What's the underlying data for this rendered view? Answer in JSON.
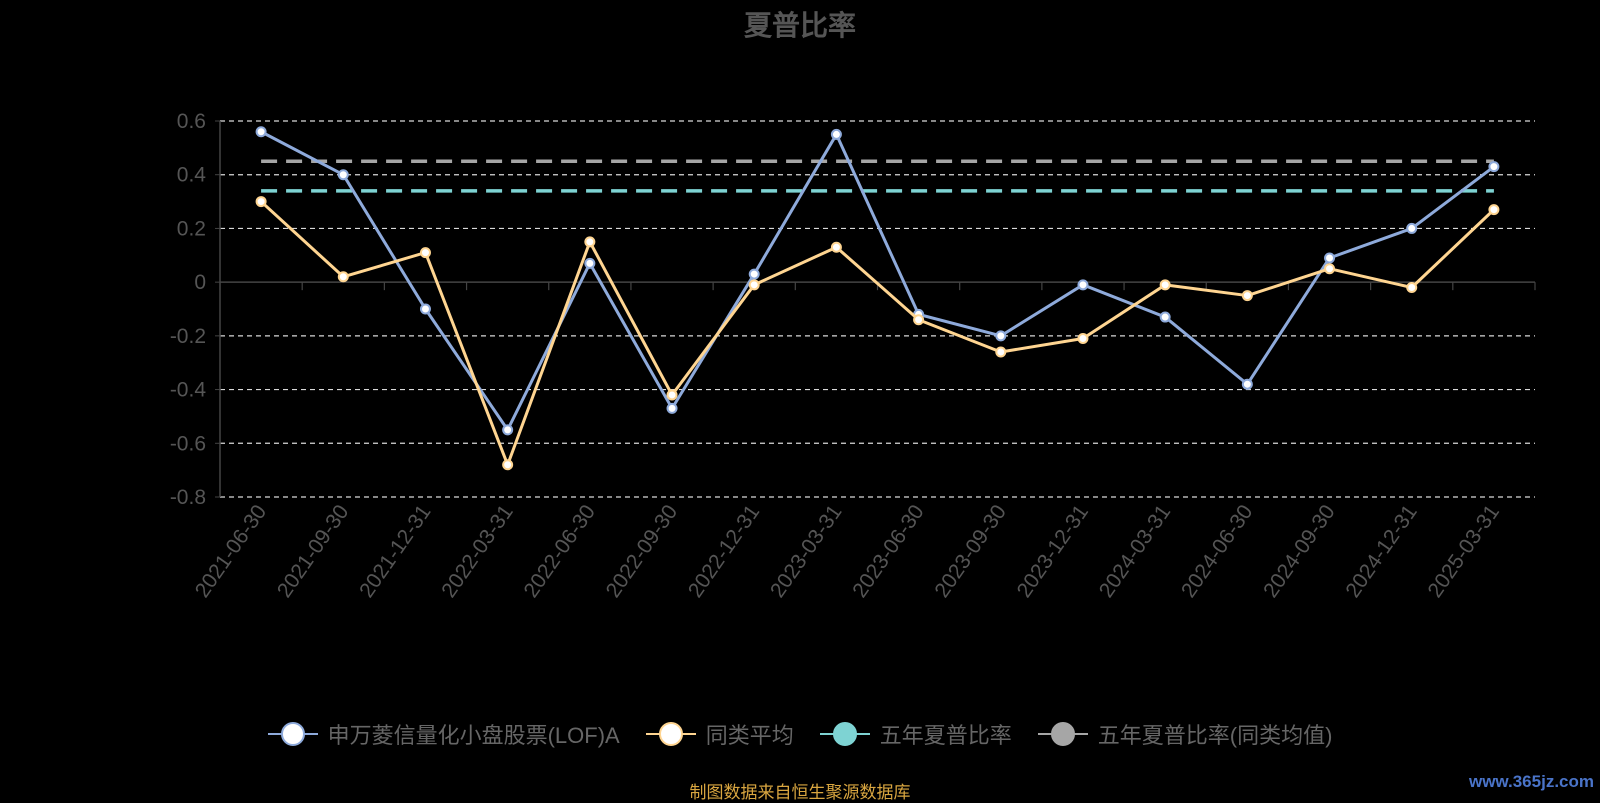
{
  "title": "夏普比率",
  "source_note": "制图数据来自恒生聚源数据库",
  "watermark": "www.365jz.com",
  "colors": {
    "background": "#000000",
    "fund": "#8eaadb",
    "category_avg": "#ffd591",
    "five_year": "#7ed3d3",
    "five_year_category": "#a6a6a6",
    "grid": "#ffffff",
    "axis_text": "#555555"
  },
  "legend": [
    {
      "label": "申万菱信量化小盘股票(LOF)A",
      "color": "#8eaadb",
      "dot_fill": "#ffffff"
    },
    {
      "label": "同类平均",
      "color": "#ffd591",
      "dot_fill": "#ffffff"
    },
    {
      "label": "五年夏普比率",
      "color": "#7ed3d3",
      "dot_fill": "#7ed3d3"
    },
    {
      "label": "五年夏普比率(同类均值)",
      "color": "#a6a6a6",
      "dot_fill": "#a6a6a6"
    }
  ],
  "chart_data": {
    "type": "line",
    "title": "夏普比率",
    "categories": [
      "2021-06-30",
      "2021-09-30",
      "2021-12-31",
      "2022-03-31",
      "2022-06-30",
      "2022-09-30",
      "2022-12-31",
      "2023-03-31",
      "2023-06-30",
      "2023-09-30",
      "2023-12-31",
      "2024-03-31",
      "2024-06-30",
      "2024-09-30",
      "2024-12-31",
      "2025-03-31"
    ],
    "yticks": [
      "0.6",
      "0.4",
      "0.2",
      "0",
      "-0.2",
      "-0.4",
      "-0.6",
      "-0.8"
    ],
    "ylim": [
      -0.8,
      0.6
    ],
    "grid": true,
    "legend_position": "bottom",
    "series": [
      {
        "name": "申万菱信量化小盘股票(LOF)A",
        "style": "line",
        "values": [
          0.56,
          0.4,
          -0.1,
          -0.55,
          0.07,
          -0.47,
          0.03,
          0.55,
          -0.12,
          -0.2,
          -0.01,
          -0.13,
          -0.38,
          0.09,
          0.2,
          0.43
        ]
      },
      {
        "name": "同类平均",
        "style": "line",
        "values": [
          0.3,
          0.02,
          0.11,
          -0.68,
          0.15,
          -0.42,
          -0.01,
          0.13,
          -0.14,
          -0.26,
          -0.21,
          -0.01,
          -0.05,
          0.05,
          -0.02,
          0.27
        ]
      },
      {
        "name": "五年夏普比率",
        "style": "dashed",
        "value": 0.34
      },
      {
        "name": "五年夏普比率(同类均值)",
        "style": "dashed",
        "value": 0.45
      }
    ]
  }
}
